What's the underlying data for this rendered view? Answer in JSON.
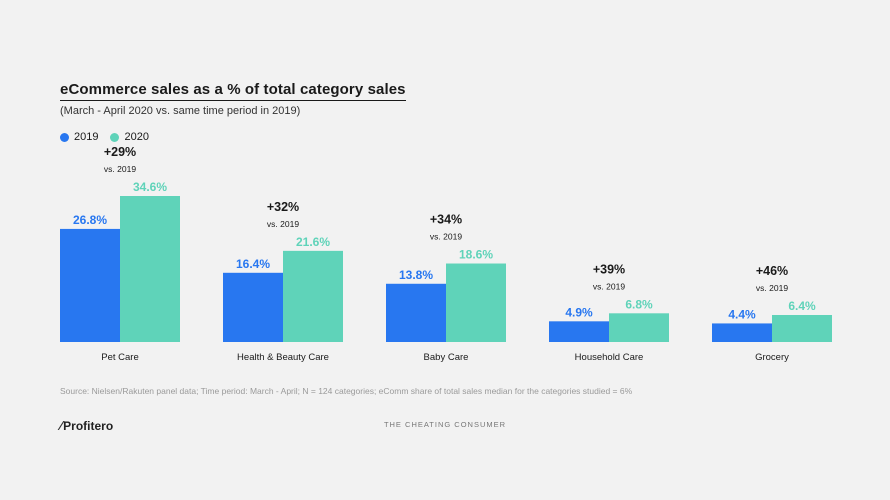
{
  "header": {
    "title": "eCommerce sales as a % of total category sales",
    "subtitle": "(March - April 2020 vs. same time period in 2019)"
  },
  "colors": {
    "series_2019": "#2877f0",
    "series_2020": "#5fd3b9",
    "text": "#1a1a1a",
    "source": "#9a9a9a"
  },
  "chart_data": {
    "type": "bar",
    "title": "eCommerce sales as a % of total category sales",
    "subtitle": "(March - April 2020 vs. same time period in 2019)",
    "xlabel": "",
    "ylabel": "",
    "ylim": [
      0,
      36
    ],
    "grid": false,
    "legend_position": "top-left",
    "categories": [
      "Pet Care",
      "Health & Beauty Care",
      "Baby Care",
      "Household Care",
      "Grocery"
    ],
    "series": [
      {
        "name": "2019",
        "values": [
          26.8,
          16.4,
          13.8,
          4.9,
          4.4
        ],
        "labels": [
          "26.8%",
          "16.4%",
          "13.8%",
          "4.9%",
          "4.4%"
        ]
      },
      {
        "name": "2020",
        "values": [
          34.6,
          21.6,
          18.6,
          6.8,
          6.4
        ],
        "labels": [
          "34.6%",
          "21.6%",
          "18.6%",
          "6.8%",
          "6.4%"
        ]
      }
    ],
    "annotations": [
      {
        "change": "+29%",
        "note": "vs. 2019"
      },
      {
        "change": "+32%",
        "note": "vs. 2019"
      },
      {
        "change": "+34%",
        "note": "vs. 2019"
      },
      {
        "change": "+39%",
        "note": "vs. 2019"
      },
      {
        "change": "+46%",
        "note": "vs. 2019"
      }
    ]
  },
  "source": "Source: Nielsen/Rakuten panel data; Time period: March - April; N = 124 categories; eComm share of total sales median for the categories studied = 6%",
  "footer": {
    "logo": "Profitero",
    "tagline": "THE CHEATING CONSUMER"
  }
}
